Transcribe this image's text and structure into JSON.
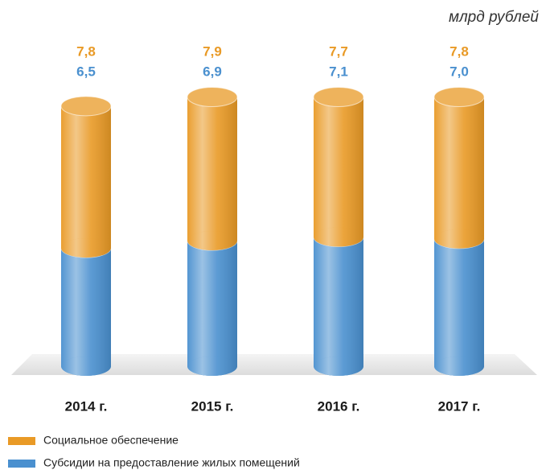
{
  "chart_data": {
    "type": "bar",
    "stacked": true,
    "unit_label": "млрд рублей",
    "categories": [
      "2014 г.",
      "2015 г.",
      "2016 г.",
      "2017 г."
    ],
    "series": [
      {
        "name": "Социальное обеспечение",
        "color": "#e99a26",
        "values": [
          7.8,
          7.9,
          7.7,
          7.8
        ],
        "value_labels": [
          "7,8",
          "7,9",
          "7,7",
          "7,8"
        ]
      },
      {
        "name": "Субсидии на предоставление жилых помещений",
        "color": "#4a90cf",
        "values": [
          6.5,
          6.9,
          7.1,
          7.0
        ],
        "value_labels": [
          "6,5",
          "6,9",
          "7,1",
          "7,0"
        ]
      }
    ]
  }
}
